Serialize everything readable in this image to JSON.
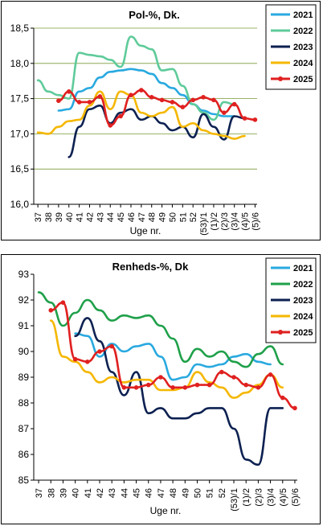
{
  "chart_data": [
    {
      "type": "line",
      "title": "Pol-%, Dk.",
      "xlabel": "Uge nr.",
      "ylabel": "",
      "ylim": [
        16.0,
        18.5
      ],
      "yticks": [
        "16,0",
        "16,5",
        "17,0",
        "17,5",
        "18,0",
        "18,5"
      ],
      "grid": "horizontal",
      "legend": "top-right",
      "categories": [
        "37",
        "38",
        "39",
        "40",
        "41",
        "42",
        "43",
        "44",
        "45",
        "46",
        "47",
        "48",
        "49",
        "50",
        "51",
        "52",
        "(53)/1",
        "(1)/2",
        "(2)/3",
        "(3)/4",
        "(4)/5",
        "(5)/6"
      ],
      "series": [
        {
          "name": "2021",
          "color": "#29A9DF",
          "marker": false,
          "values": [
            null,
            null,
            17.33,
            17.35,
            17.6,
            17.65,
            17.8,
            17.88,
            17.9,
            17.92,
            17.9,
            17.85,
            17.72,
            17.65,
            17.55,
            17.42,
            17.33,
            17.28,
            17.25,
            17.25,
            null,
            null
          ]
        },
        {
          "name": "2022",
          "color": "#5FCB9A",
          "marker": false,
          "values": [
            17.76,
            17.6,
            17.55,
            17.5,
            18.15,
            18.12,
            18.1,
            18.05,
            17.95,
            18.38,
            18.25,
            18.2,
            17.9,
            17.92,
            17.68,
            17.42,
            17.3,
            17.2,
            17.45,
            17.42,
            null,
            null
          ]
        },
        {
          "name": "2023",
          "color": "#0D2151",
          "marker": false,
          "values": [
            null,
            null,
            null,
            16.67,
            17.1,
            17.35,
            17.4,
            17.15,
            17.3,
            17.35,
            17.2,
            17.25,
            17.15,
            17.05,
            17.1,
            16.95,
            17.28,
            17.1,
            16.92,
            17.25,
            17.22,
            null
          ]
        },
        {
          "name": "2024",
          "color": "#F5B700",
          "marker": false,
          "values": [
            17.02,
            17.0,
            17.1,
            17.18,
            17.2,
            17.4,
            17.6,
            17.35,
            17.6,
            17.55,
            17.3,
            17.25,
            17.3,
            17.38,
            17.1,
            17.15,
            17.05,
            17.0,
            16.97,
            16.93,
            16.97,
            null
          ]
        },
        {
          "name": "2025",
          "color": "#E02020",
          "marker": true,
          "values": [
            null,
            null,
            17.47,
            17.6,
            17.45,
            17.45,
            17.53,
            17.12,
            17.25,
            17.55,
            17.62,
            17.52,
            17.48,
            17.45,
            17.38,
            17.48,
            17.52,
            17.48,
            17.3,
            17.42,
            17.22,
            17.2
          ]
        }
      ]
    },
    {
      "type": "line",
      "title": "Renheds-%, Dk",
      "xlabel": "Uge nr.",
      "ylabel": "",
      "ylim": [
        85,
        93
      ],
      "yticks": [
        "85",
        "86",
        "87",
        "88",
        "89",
        "90",
        "91",
        "92",
        "93"
      ],
      "grid": "none",
      "legend": "top-right",
      "categories": [
        "37",
        "38",
        "39",
        "40",
        "41",
        "42",
        "43",
        "44",
        "45",
        "46",
        "47",
        "48",
        "49",
        "50",
        "51",
        "52",
        "(53)/1",
        "(1)/2",
        "(2)/3",
        "(3)/4",
        "(4)/5",
        "(5)/6"
      ],
      "series": [
        {
          "name": "2021",
          "color": "#29A9DF",
          "marker": false,
          "values": [
            null,
            null,
            null,
            90.7,
            90.6,
            89.8,
            90.3,
            90.0,
            90.2,
            90.3,
            89.8,
            88.9,
            89.0,
            89.5,
            89.4,
            89.5,
            89.8,
            89.9,
            89.6,
            89.5,
            null,
            null
          ]
        },
        {
          "name": "2022",
          "color": "#1FA04A",
          "marker": false,
          "values": [
            92.3,
            91.9,
            91.0,
            91.5,
            92.0,
            91.6,
            91.2,
            91.4,
            91.3,
            91.4,
            91.0,
            90.5,
            89.6,
            90.1,
            89.8,
            90.0,
            89.6,
            89.4,
            89.9,
            90.2,
            89.5,
            null
          ]
        },
        {
          "name": "2023",
          "color": "#0D2151",
          "marker": false,
          "values": [
            null,
            null,
            null,
            90.6,
            91.3,
            90.4,
            89.2,
            88.3,
            89.2,
            87.6,
            87.8,
            87.4,
            87.4,
            87.6,
            87.8,
            87.8,
            87.0,
            85.8,
            85.6,
            87.8,
            87.8,
            null
          ]
        },
        {
          "name": "2024",
          "color": "#F5B700",
          "marker": false,
          "values": [
            null,
            91.2,
            89.8,
            89.6,
            89.2,
            88.8,
            89.0,
            88.8,
            88.9,
            88.9,
            88.5,
            88.5,
            88.6,
            89.2,
            88.8,
            88.6,
            88.2,
            88.4,
            88.7,
            89.1,
            88.6,
            null
          ]
        },
        {
          "name": "2025",
          "color": "#E02020",
          "marker": true,
          "values": [
            null,
            91.6,
            91.9,
            89.7,
            89.6,
            90.0,
            90.2,
            88.6,
            88.6,
            88.7,
            89.0,
            88.6,
            88.6,
            88.7,
            88.7,
            89.2,
            89.0,
            88.7,
            88.6,
            89.1,
            88.2,
            87.8
          ]
        }
      ]
    }
  ]
}
